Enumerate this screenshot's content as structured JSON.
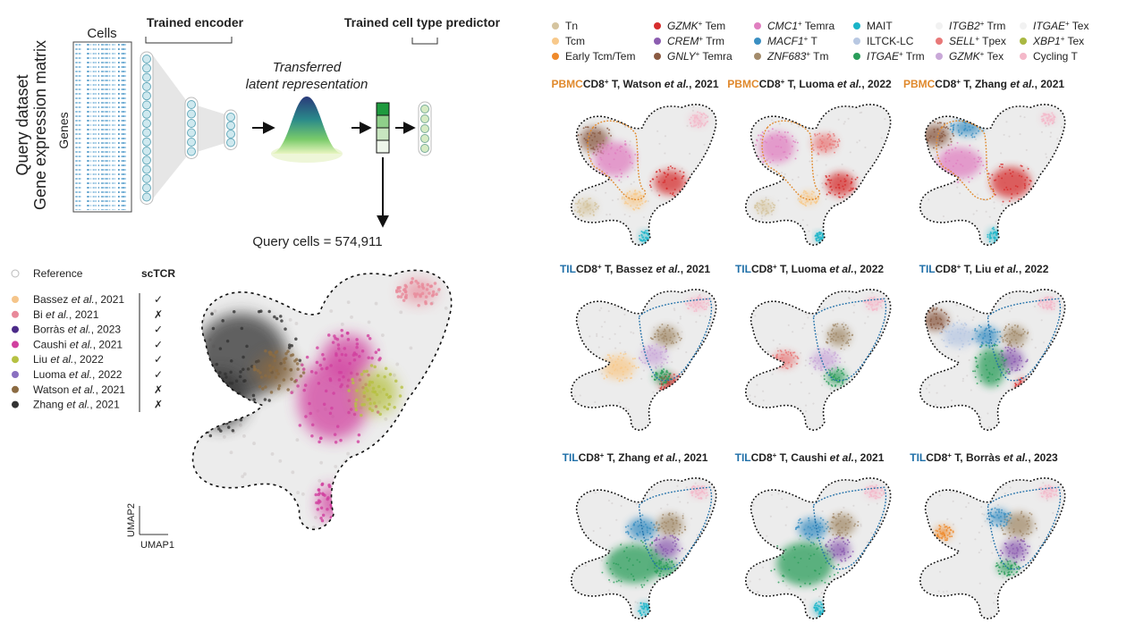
{
  "diagram": {
    "cells": "Cells",
    "genes": "Genes",
    "query_dataset": "Query dataset",
    "gene_matrix": "Gene expression matrix",
    "encoder": "Trained encoder",
    "predictor": "Trained cell type predictor",
    "latent_1": "Transferred",
    "latent_2": "latent representation",
    "query_cells": "Query cells = 574,911"
  },
  "dataset_legend": {
    "reference": "Reference",
    "sctcr": "scTCR",
    "items": [
      {
        "pre": "Bassez ",
        "em": "et al.",
        "post": ", 2021",
        "tcr": "✓",
        "color": "#f5c58a"
      },
      {
        "pre": "Bi ",
        "em": "et al.",
        "post": ", 2021",
        "tcr": "✗",
        "color": "#e8899a"
      },
      {
        "pre": "Borràs ",
        "em": "et al.",
        "post": ", 2023",
        "tcr": "✓",
        "color": "#4b2a88"
      },
      {
        "pre": "Caushi ",
        "em": "et al.",
        "post": ", 2021",
        "tcr": "✓",
        "color": "#d1409f"
      },
      {
        "pre": "Liu ",
        "em": "et al.",
        "post": ", 2022",
        "tcr": "✓",
        "color": "#b6c142"
      },
      {
        "pre": "Luoma ",
        "em": "et al.",
        "post": ", 2022",
        "tcr": "✓",
        "color": "#8a70c0"
      },
      {
        "pre": "Watson ",
        "em": "et al.",
        "post": ", 2021",
        "tcr": "✗",
        "color": "#8b6b42"
      },
      {
        "pre": "Zhang ",
        "em": "et al.",
        "post": ", 2021",
        "tcr": "✗",
        "color": "#333333"
      }
    ]
  },
  "axes": {
    "y": "UMAP2",
    "x": "UMAP1"
  },
  "cell_types": [
    {
      "gene": "",
      "sup": "",
      "rest": "Tn",
      "color": "#d5c49f"
    },
    {
      "gene": "",
      "sup": "",
      "rest": "Tcm",
      "color": "#f8c98b"
    },
    {
      "gene": "",
      "sup": "",
      "rest": "Early Tcm/Tem",
      "color": "#ef8a2b"
    },
    {
      "gene": "GZMK",
      "sup": "+",
      "rest": " Tem",
      "color": "#d62d2d"
    },
    {
      "gene": "CREM",
      "sup": "+",
      "rest": " Trm",
      "color": "#8c5db0"
    },
    {
      "gene": "GNLY",
      "sup": "+",
      "rest": " Temra",
      "color": "#8a5a42"
    },
    {
      "gene": "CMC1",
      "sup": "+",
      "rest": " Temra",
      "color": "#e07fc0"
    },
    {
      "gene": "MACF1",
      "sup": "+",
      "rest": " T",
      "color": "#3a8fc2"
    },
    {
      "gene": "ZNF683",
      "sup": "+",
      "rest": " Tm",
      "color": "#a38b6b"
    },
    {
      "gene": "",
      "sup": "",
      "rest": "MAIT",
      "color": "#1ab4c8"
    },
    {
      "gene": "",
      "sup": "",
      "rest": "ILTCK-LC",
      "color": "#b8c8e2"
    },
    {
      "gene": "ITGAE",
      "sup": "+",
      "rest": " Trm",
      "color": "#2a9d5a"
    },
    {
      "gene": "ITGB2",
      "sup": "+",
      "rest": " Trm",
      "color": "#f2f2f2"
    },
    {
      "gene": "SELL",
      "sup": "+",
      "rest": " Tpex",
      "color": "#e87878"
    },
    {
      "gene": "GZMK",
      "sup": "+",
      "rest": " Tex",
      "color": "#c9a8d8"
    },
    {
      "gene": "ITGAE",
      "sup": "+",
      "rest": " Tex",
      "color": "#f2f2f2"
    },
    {
      "gene": "XBP1",
      "sup": "+",
      "rest": " Tex",
      "color": "#a9b842"
    },
    {
      "gene": "",
      "sup": "",
      "rest": "Cycling T",
      "color": "#f4b8c9"
    }
  ],
  "panels": [
    {
      "tissue": "PBMC",
      "tissue_color": "#e0892c",
      "cell": "CD8",
      "sup": "+",
      "mid": " T, Watson ",
      "em": "et al.",
      "post": ", 2021"
    },
    {
      "tissue": "PBMC",
      "tissue_color": "#e0892c",
      "cell": "CD8",
      "sup": "+",
      "mid": " T, Luoma ",
      "em": "et al.",
      "post": ", 2022"
    },
    {
      "tissue": "PBMC",
      "tissue_color": "#e0892c",
      "cell": "CD8",
      "sup": "+",
      "mid": " T, Zhang ",
      "em": "et al.",
      "post": ", 2021"
    },
    {
      "tissue": "TIL",
      "tissue_color": "#1f6fa8",
      "cell": "CD8",
      "sup": "+",
      "mid": " T, Bassez ",
      "em": "et al.",
      "post": ", 2021"
    },
    {
      "tissue": "TIL",
      "tissue_color": "#1f6fa8",
      "cell": "CD8",
      "sup": "+",
      "mid": " T, Luoma ",
      "em": "et al.",
      "post": ", 2022"
    },
    {
      "tissue": "TIL",
      "tissue_color": "#1f6fa8",
      "cell": "CD8",
      "sup": "+",
      "mid": " T, Liu ",
      "em": "et al.",
      "post": ", 2022"
    },
    {
      "tissue": "TIL",
      "tissue_color": "#1f6fa8",
      "cell": "CD8",
      "sup": "+",
      "mid": " T, Zhang ",
      "em": "et al.",
      "post": ", 2021"
    },
    {
      "tissue": "TIL",
      "tissue_color": "#1f6fa8",
      "cell": "CD8",
      "sup": "+",
      "mid": " T, Caushi ",
      "em": "et al.",
      "post": ", 2021"
    },
    {
      "tissue": "TIL",
      "tissue_color": "#1f6fa8",
      "cell": "CD8",
      "sup": "+",
      "mid": " T, Borràs ",
      "em": "et al.",
      "post": ", 2023"
    }
  ]
}
